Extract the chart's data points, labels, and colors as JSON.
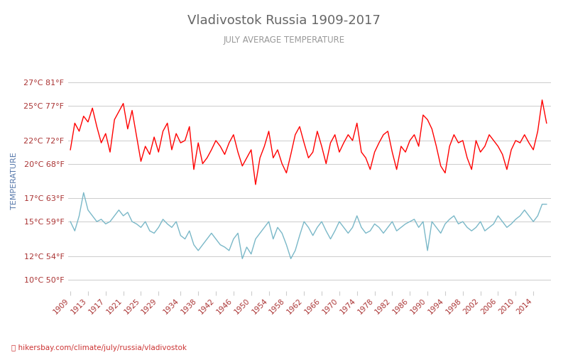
{
  "title": "Vladivostok Russia 1909-2017",
  "subtitle": "JULY AVERAGE TEMPERATURE",
  "ylabel": "TEMPERATURE",
  "xlabel_url": "hikersbay.com/climate/july/russia/vladivostok",
  "year_start": 1909,
  "year_end": 2017,
  "yticks_c": [
    10,
    12,
    15,
    17,
    20,
    22,
    25,
    27
  ],
  "yticks_f": [
    50,
    54,
    59,
    63,
    68,
    72,
    77,
    81
  ],
  "ylim": [
    9,
    28
  ],
  "background_color": "#ffffff",
  "grid_color": "#cccccc",
  "day_color": "#ff0000",
  "night_color": "#7ab8c8",
  "title_color": "#666666",
  "subtitle_color": "#999999",
  "ylabel_color": "#5577aa",
  "tick_color": "#aa3333",
  "url_color": "#cc3333",
  "legend_night_color": "#7ab8c8",
  "legend_day_color": "#ff0000",
  "day_temps": [
    21.2,
    23.5,
    22.8,
    24.1,
    23.6,
    24.8,
    23.2,
    21.8,
    22.6,
    21.0,
    23.8,
    24.5,
    25.2,
    23.0,
    24.6,
    22.4,
    20.2,
    21.5,
    20.8,
    22.3,
    21.0,
    22.8,
    23.5,
    21.2,
    22.6,
    21.8,
    22.0,
    23.2,
    19.5,
    21.8,
    20.0,
    20.5,
    21.2,
    22.0,
    21.5,
    20.8,
    21.8,
    22.5,
    21.0,
    19.8,
    20.5,
    21.2,
    18.2,
    20.5,
    21.5,
    22.8,
    20.5,
    21.2,
    20.0,
    19.2,
    20.8,
    22.5,
    23.2,
    21.8,
    20.5,
    21.0,
    22.8,
    21.5,
    20.0,
    21.8,
    22.5,
    21.0,
    21.8,
    22.5,
    22.0,
    23.5,
    21.0,
    20.5,
    19.5,
    21.0,
    21.8,
    22.5,
    22.8,
    21.0,
    19.5,
    21.5,
    21.0,
    22.0,
    22.5,
    21.5,
    24.2,
    23.8,
    23.0,
    21.5,
    19.8,
    19.2,
    21.5,
    22.5,
    21.8,
    22.0,
    20.5,
    19.5,
    22.0,
    21.0,
    21.5,
    22.5,
    22.0,
    21.5,
    20.8,
    19.5,
    21.2,
    22.0,
    21.8,
    22.5,
    21.8,
    21.2,
    22.8,
    25.5,
    23.5
  ],
  "night_temps": [
    15.0,
    14.2,
    15.5,
    17.5,
    16.0,
    15.5,
    15.0,
    15.2,
    14.8,
    15.0,
    15.5,
    16.0,
    15.5,
    15.8,
    15.0,
    14.8,
    14.5,
    15.0,
    14.2,
    14.0,
    14.5,
    15.2,
    14.8,
    14.5,
    15.0,
    13.8,
    13.5,
    14.2,
    13.0,
    12.5,
    13.0,
    13.5,
    14.0,
    13.5,
    13.0,
    12.8,
    12.5,
    13.5,
    14.0,
    11.8,
    12.8,
    12.2,
    13.5,
    14.0,
    14.5,
    15.0,
    13.5,
    14.5,
    14.0,
    13.0,
    11.8,
    12.5,
    13.8,
    15.0,
    14.5,
    13.8,
    14.5,
    15.0,
    14.2,
    13.5,
    14.2,
    15.0,
    14.5,
    14.0,
    14.5,
    15.5,
    14.5,
    14.0,
    14.2,
    14.8,
    14.5,
    14.0,
    14.5,
    15.0,
    14.2,
    14.5,
    14.8,
    15.0,
    15.2,
    14.5,
    15.0,
    12.5,
    15.0,
    14.5,
    14.0,
    14.8,
    15.2,
    15.5,
    14.8,
    15.0,
    14.5,
    14.2,
    14.5,
    15.0,
    14.2,
    14.5,
    14.8,
    15.5,
    15.0,
    14.5,
    14.8,
    15.2,
    15.5,
    16.0,
    15.5,
    15.0,
    15.5,
    16.5,
    16.5
  ],
  "xtick_years": [
    1909,
    1913,
    1917,
    1921,
    1925,
    1929,
    1934,
    1938,
    1942,
    1946,
    1950,
    1954,
    1958,
    1962,
    1966,
    1970,
    1974,
    1978,
    1982,
    1986,
    1990,
    1994,
    1998,
    2002,
    2006,
    2010,
    2014
  ]
}
